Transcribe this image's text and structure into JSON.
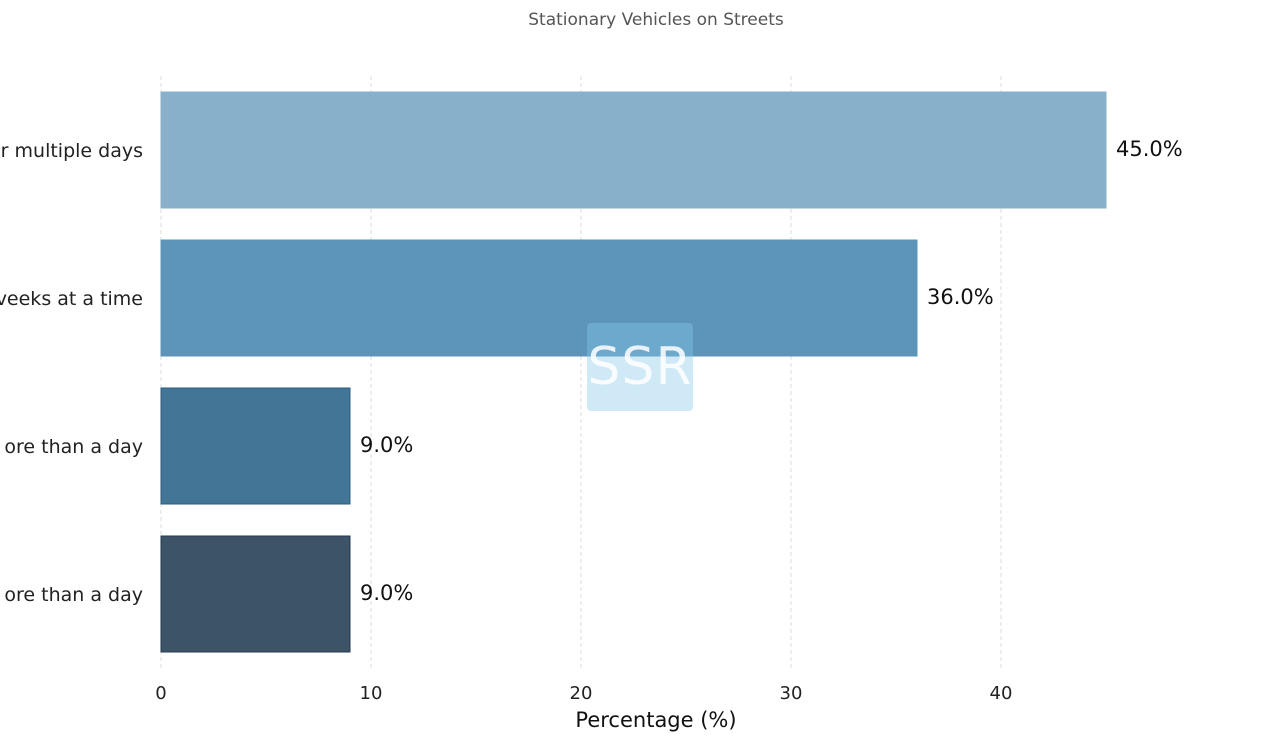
{
  "chart_data": {
    "type": "bar",
    "orientation": "horizontal",
    "title": "Stationary Vehicles on Streets",
    "xlabel": "Percentage (%)",
    "ylabel": "",
    "xlim": [
      0,
      48
    ],
    "x_ticks": [
      0,
      10,
      20,
      30,
      40
    ],
    "grid": "vertical dashed",
    "categories": [
      "r multiple days",
      "veeks at a time",
      "ore than a day",
      "ore than a day"
    ],
    "values": [
      45.0,
      36.0,
      9.0,
      9.0
    ],
    "value_labels": [
      "45.0%",
      "36.0%",
      "9.0%",
      "9.0%"
    ],
    "colors": [
      "#89b0ca",
      "#5d94ba",
      "#437596",
      "#3c5368"
    ],
    "edge_colors": [
      "#89b0ca",
      "#5d94ba",
      "#2f5b7a",
      "#26384a"
    ]
  },
  "watermark": {
    "text": "SSR"
  }
}
